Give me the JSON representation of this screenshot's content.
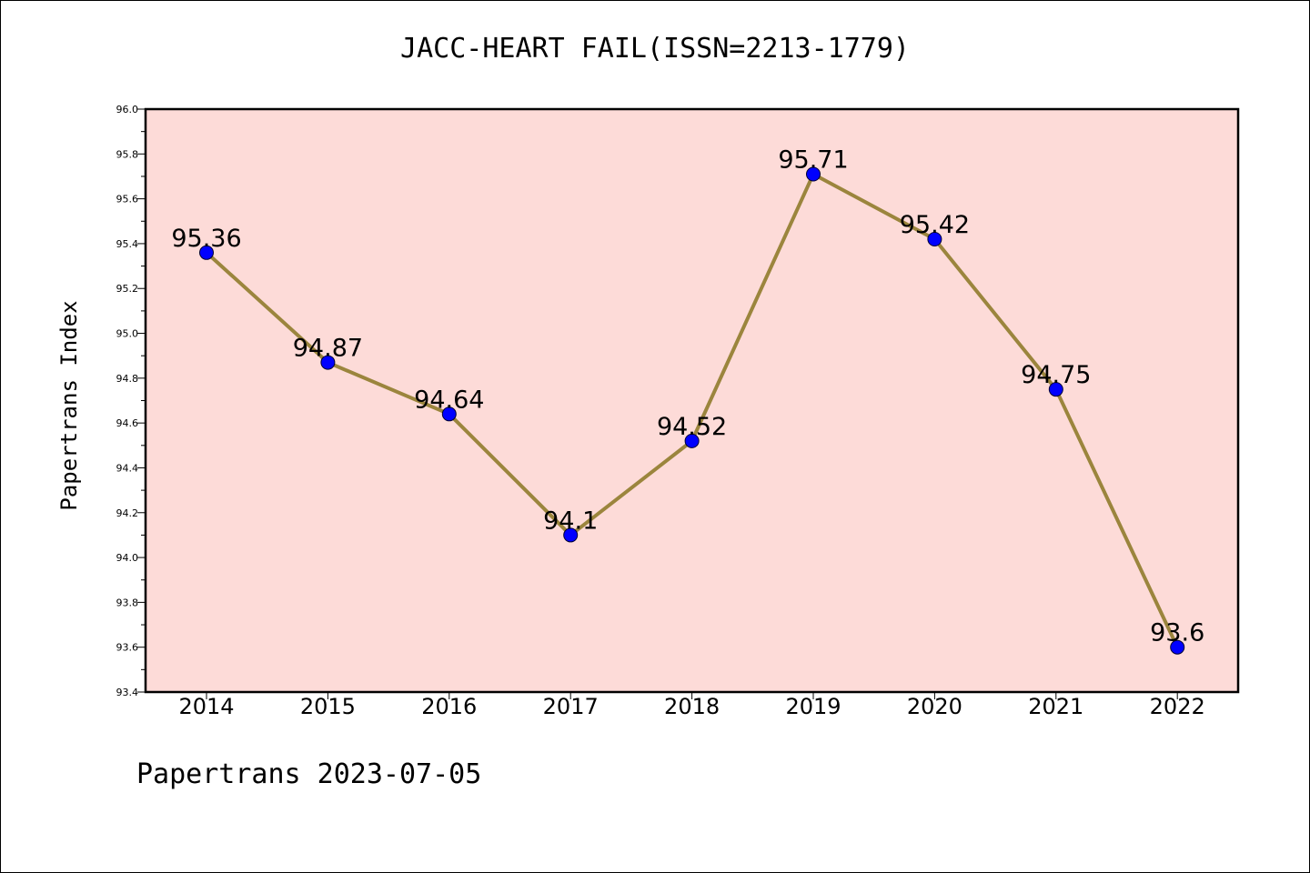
{
  "chart_data": {
    "type": "line",
    "title": "JACC-HEART FAIL(ISSN=2213-1779)",
    "xlabel": "",
    "ylabel": "Papertrans Index",
    "categories": [
      "2014",
      "2015",
      "2016",
      "2017",
      "2018",
      "2019",
      "2020",
      "2021",
      "2022"
    ],
    "values": [
      95.36,
      94.87,
      94.64,
      94.1,
      94.52,
      95.71,
      95.42,
      94.75,
      93.6
    ],
    "data_labels": [
      "95.36",
      "94.87",
      "94.64",
      "94.1",
      "94.52",
      "95.71",
      "95.42",
      "94.75",
      "93.6"
    ],
    "ylim": [
      93.4,
      96.0
    ],
    "yticks": [
      "93.4",
      "93.6",
      "93.8",
      "94.0",
      "94.2",
      "94.4",
      "94.6",
      "94.8",
      "95.0",
      "95.2",
      "95.4",
      "95.6",
      "95.8",
      "96.0"
    ],
    "grid": false,
    "legend": "none",
    "colors": {
      "plot_background": "#fddbd8",
      "line": "#9b853d",
      "marker": "#0000ff"
    }
  },
  "footer": "Papertrans 2023-07-05"
}
